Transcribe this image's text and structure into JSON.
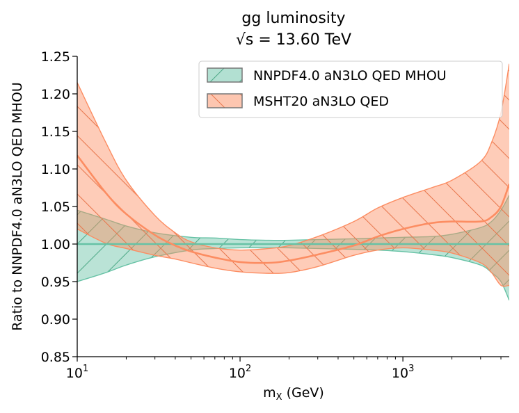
{
  "chart_data": {
    "type": "area",
    "title_line1": "gg luminosity",
    "title_line2": "√s = 13.60 TeV",
    "xlabel_main": "m",
    "xlabel_sub": "X",
    "xlabel_unit": " (GeV)",
    "ylabel": "Ratio to NNPDF4.0 aN3LO QED MHOU",
    "xscale": "log",
    "xlim": [
      10,
      4500
    ],
    "ylim": [
      0.85,
      1.25
    ],
    "yticks": [
      {
        "value": 0.85,
        "label": "0.85"
      },
      {
        "value": 0.9,
        "label": "0.90"
      },
      {
        "value": 0.95,
        "label": "0.95"
      },
      {
        "value": 1.0,
        "label": "1.00"
      },
      {
        "value": 1.05,
        "label": "1.05"
      },
      {
        "value": 1.1,
        "label": "1.10"
      },
      {
        "value": 1.15,
        "label": "1.15"
      },
      {
        "value": 1.2,
        "label": "1.20"
      },
      {
        "value": 1.25,
        "label": "1.25"
      }
    ],
    "xticks": [
      {
        "value": 10,
        "base": "10",
        "exp": "1"
      },
      {
        "value": 100,
        "base": "10",
        "exp": "2"
      },
      {
        "value": 1000,
        "base": "10",
        "exp": "3"
      }
    ],
    "legend_position": "top-right",
    "series": [
      {
        "name": "NNPDF4.0 aN3LO QED MHOU",
        "fill": "#66c2a5",
        "edge": "#66c2a5",
        "hatch": "/",
        "x": [
          10,
          15,
          20,
          30,
          50,
          70,
          100,
          150,
          200,
          300,
          500,
          700,
          1000,
          1500,
          2000,
          3000,
          3500,
          4000,
          4500
        ],
        "upper": [
          1.045,
          1.033,
          1.024,
          1.015,
          1.009,
          1.008,
          1.006,
          1.005,
          1.005,
          1.006,
          1.007,
          1.008,
          1.009,
          1.01,
          1.013,
          1.022,
          1.03,
          1.045,
          1.065
        ],
        "lower": [
          0.95,
          0.962,
          0.972,
          0.983,
          0.992,
          0.994,
          0.995,
          0.995,
          0.995,
          0.994,
          0.993,
          0.992,
          0.99,
          0.986,
          0.982,
          0.972,
          0.962,
          0.95,
          0.925
        ],
        "central": [
          1.0,
          1.0
        ]
      },
      {
        "name": "MSHT20 aN3LO QED",
        "fill": "#fc8d62",
        "edge": "#fc8d62",
        "hatch": "\\",
        "x": [
          10,
          15,
          20,
          30,
          40,
          50,
          70,
          100,
          150,
          200,
          300,
          500,
          700,
          1000,
          1500,
          2000,
          3000,
          3500,
          4000,
          4500
        ],
        "upper": [
          1.215,
          1.135,
          1.085,
          1.038,
          1.015,
          1.003,
          0.995,
          0.992,
          0.994,
          0.998,
          1.01,
          1.03,
          1.048,
          1.062,
          1.075,
          1.085,
          1.11,
          1.135,
          1.175,
          1.24
        ],
        "central": [
          1.118,
          1.068,
          1.04,
          1.012,
          0.998,
          0.99,
          0.982,
          0.976,
          0.975,
          0.978,
          0.986,
          0.998,
          1.01,
          1.02,
          1.028,
          1.03,
          1.03,
          1.036,
          1.05,
          1.08
        ],
        "lower": [
          1.02,
          1.001,
          0.994,
          0.985,
          0.98,
          0.975,
          0.968,
          0.963,
          0.961,
          0.962,
          0.97,
          0.985,
          0.992,
          0.995,
          0.992,
          0.988,
          0.975,
          0.962,
          0.945,
          0.945
        ]
      }
    ]
  }
}
